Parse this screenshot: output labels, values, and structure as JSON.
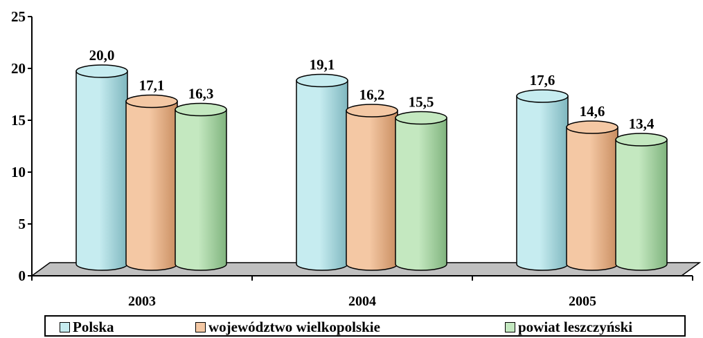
{
  "chart_data": {
    "type": "bar",
    "categories": [
      "2003",
      "2004",
      "2005"
    ],
    "series": [
      {
        "name": "Polska",
        "values": [
          20.0,
          19.1,
          17.6
        ],
        "labels": [
          "20,0",
          "19,1",
          "17,6"
        ],
        "color": "#c6ecf0",
        "dark": "#7fb7bf"
      },
      {
        "name": "województwo wielkopolskie",
        "values": [
          17.1,
          16.2,
          14.6
        ],
        "labels": [
          "17,1",
          "16,2",
          "14,6"
        ],
        "color": "#f4c8a4",
        "dark": "#c98d60"
      },
      {
        "name": "powiat leszczyński",
        "values": [
          16.3,
          15.5,
          13.4
        ],
        "labels": [
          "16,3",
          "15,5",
          "13,4"
        ],
        "color": "#c4e8c0",
        "dark": "#80b47e"
      }
    ],
    "yticks": [
      "0",
      "5",
      "10",
      "15",
      "20",
      "25"
    ],
    "ylim": [
      0,
      25
    ],
    "grid": false,
    "legend_position": "bottom"
  }
}
